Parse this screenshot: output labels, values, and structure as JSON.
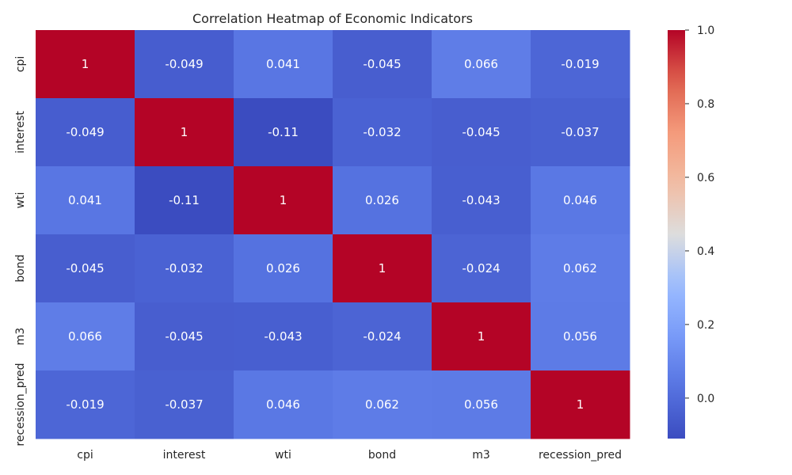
{
  "chart_data": {
    "type": "heatmap",
    "title": "Correlation Heatmap of Economic Indicators",
    "xlabel": "",
    "ylabel": "",
    "rows": [
      "cpi",
      "interest",
      "wti",
      "bond",
      "m3",
      "recession_pred"
    ],
    "columns": [
      "cpi",
      "interest",
      "wti",
      "bond",
      "m3",
      "recession_pred"
    ],
    "values": [
      [
        1,
        -0.049,
        0.041,
        -0.045,
        0.066,
        -0.019
      ],
      [
        -0.049,
        1,
        -0.11,
        -0.032,
        -0.045,
        -0.037
      ],
      [
        0.041,
        -0.11,
        1,
        0.026,
        -0.043,
        0.046
      ],
      [
        -0.045,
        -0.032,
        0.026,
        1,
        -0.024,
        0.062
      ],
      [
        0.066,
        -0.045,
        -0.043,
        -0.024,
        1,
        0.056
      ],
      [
        -0.019,
        -0.037,
        0.046,
        0.062,
        0.056,
        1
      ]
    ],
    "value_labels": [
      [
        "1",
        "-0.049",
        "0.041",
        "-0.045",
        "0.066",
        "-0.019"
      ],
      [
        "-0.049",
        "1",
        "-0.11",
        "-0.032",
        "-0.045",
        "-0.037"
      ],
      [
        "0.041",
        "-0.11",
        "1",
        "0.026",
        "-0.043",
        "0.046"
      ],
      [
        "-0.045",
        "-0.032",
        "0.026",
        "1",
        "-0.024",
        "0.062"
      ],
      [
        "0.066",
        "-0.045",
        "-0.043",
        "-0.024",
        "1",
        "0.056"
      ],
      [
        "-0.019",
        "-0.037",
        "0.046",
        "0.062",
        "0.056",
        "1"
      ]
    ],
    "colormap": "coolwarm",
    "vmin": -0.11,
    "vmax": 1.0,
    "colorbar": {
      "ticks": [
        0.0,
        0.2,
        0.4,
        0.6,
        0.8,
        1.0
      ],
      "tick_labels": [
        "0.0",
        "0.2",
        "0.4",
        "0.6",
        "0.8",
        "1.0"
      ]
    },
    "grid": false,
    "legend": "colorbar-right"
  }
}
